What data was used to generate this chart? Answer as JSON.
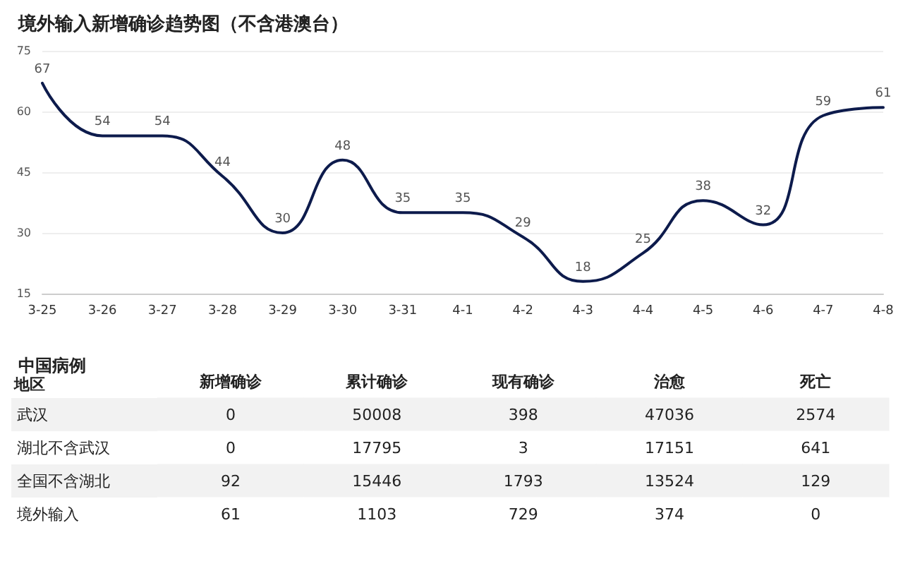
{
  "chart_data": [
    {
      "type": "line",
      "title": "境外输入新增确诊趋势图（不含港澳台）",
      "categories": [
        "3-25",
        "3-26",
        "3-27",
        "3-28",
        "3-29",
        "3-30",
        "3-31",
        "4-1",
        "4-2",
        "4-3",
        "4-4",
        "4-5",
        "4-6",
        "4-7",
        "4-8"
      ],
      "series": [
        {
          "color": "#0d1b4c",
          "values": [
            67,
            54,
            54,
            44,
            30,
            48,
            35,
            35,
            29,
            18,
            25,
            38,
            32,
            59,
            61
          ]
        }
      ],
      "ylim": [
        15,
        75
      ],
      "yticks": [
        15,
        30,
        45,
        60,
        75
      ],
      "grid": "y",
      "marker": "none",
      "line_style": "solid",
      "data_labels": true
    },
    {
      "type": "heatmap",
      "title": "中国病例",
      "ylabel": "地区",
      "categories": [
        "新增确诊",
        "累计确诊",
        "现有确诊",
        "治愈",
        "死亡"
      ],
      "y_categories": [
        "武汉",
        "湖北不含武汉",
        "全国不含湖北",
        "境外输入"
      ],
      "cells": [
        [
          0,
          50008,
          398,
          47036,
          2574
        ],
        [
          0,
          17795,
          3,
          17151,
          641
        ],
        [
          92,
          15446,
          1793,
          13524,
          129
        ],
        [
          61,
          1103,
          729,
          374,
          0
        ]
      ],
      "data_labels": true
    }
  ]
}
